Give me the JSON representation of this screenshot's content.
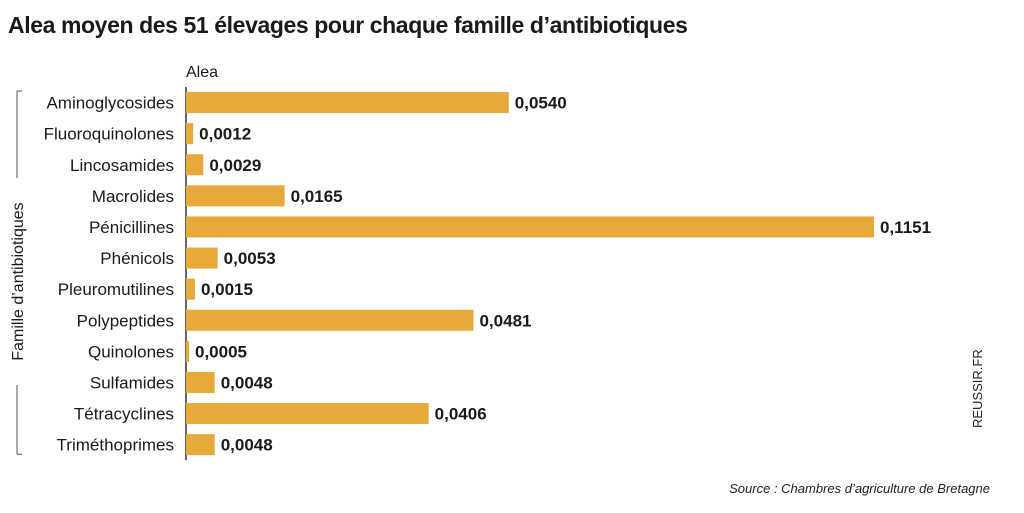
{
  "title": "Alea moyen des 51 élevages pour chaque famille d’antibiotiques",
  "source": "Source : Chambres d’agriculture de Bretagne",
  "watermark": "REUSSIR.FR",
  "colors": {
    "bar": "#E8A93B",
    "axis": "#333333",
    "text": "#1a1a1a"
  },
  "chart_data": {
    "type": "bar",
    "orientation": "horizontal",
    "title": "Alea moyen des 51 élevages pour chaque famille d’antibiotiques",
    "xlabel": "Alea",
    "ylabel": "Famille d’antibiotiques",
    "categories": [
      "Aminoglycosides",
      "Fluoroquinolones",
      "Lincosamides",
      "Macrolides",
      "Pénicillines",
      "Phénicols",
      "Pleuromutilines",
      "Polypeptides",
      "Quinolones",
      "Sulfamides",
      "Tétracyclines",
      "Triméthoprimes"
    ],
    "values": [
      0.054,
      0.0012,
      0.0029,
      0.0165,
      0.1151,
      0.0053,
      0.0015,
      0.0481,
      0.0005,
      0.0048,
      0.0406,
      0.0048
    ],
    "value_labels": [
      "0,0540",
      "0,0012",
      "0,0029",
      "0,0165",
      "0,1151",
      "0,0053",
      "0,0015",
      "0,0481",
      "0,0005",
      "0,0048",
      "0,0406",
      "0,0048"
    ],
    "xlim": [
      0,
      0.1151
    ],
    "grid": false,
    "legend": "none"
  }
}
